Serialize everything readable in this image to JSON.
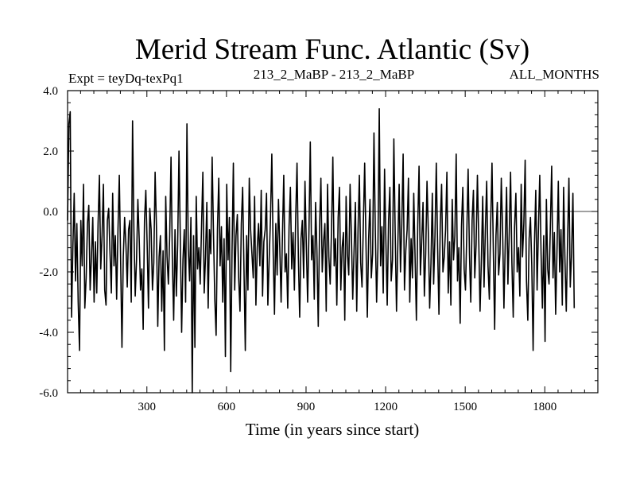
{
  "chart_data": {
    "type": "line",
    "title": "Merid Stream Func. Atlantic (Sv)",
    "subtitle_left": "Expt = teyDq-texPq1",
    "subtitle_center": "213_2_MaBP - 213_2_MaBP",
    "subtitle_right": "ALL_MONTHS",
    "xlabel": "Time (in years since start)",
    "ylabel": "",
    "xlim": [
      1,
      2000
    ],
    "ylim": [
      -6.0,
      4.0
    ],
    "x_ticks": [
      300,
      600,
      900,
      1200,
      1500,
      1800
    ],
    "x_tick_labels": [
      "300",
      "600",
      "900",
      "1200",
      "1500",
      "1800"
    ],
    "y_ticks": [
      -6.0,
      -4.0,
      -2.0,
      0.0,
      2.0,
      4.0
    ],
    "y_tick_labels": [
      "-6.0",
      "-4.0",
      "-2.0",
      "0.0",
      "2.0",
      "4.0"
    ],
    "zero_line": true,
    "grid": false,
    "series": [
      {
        "x_start": 1,
        "x_step": 5,
        "color": "#000000",
        "values": [
          -0.3,
          2.9,
          3.3,
          -3.5,
          -1.2,
          0.6,
          -2.3,
          -0.4,
          -3.0,
          -4.6,
          -0.3,
          -1.8,
          0.9,
          -3.2,
          -2.2,
          -0.4,
          0.2,
          -2.6,
          -1.5,
          -0.2,
          -3.0,
          -1.0,
          -2.7,
          -0.4,
          1.2,
          -1.9,
          -0.8,
          0.9,
          -2.6,
          -3.1,
          -0.3,
          0.1,
          -1.4,
          -2.7,
          0.6,
          -1.8,
          -0.8,
          -2.9,
          -0.6,
          1.2,
          -1.6,
          -4.5,
          -1.5,
          -0.2,
          -1.1,
          -2.5,
          -0.6,
          -0.3,
          -3.0,
          3.0,
          -0.6,
          -2.8,
          -1.6,
          0.4,
          -0.9,
          -2.6,
          -1.9,
          -3.9,
          -0.3,
          0.7,
          -1.1,
          -3.2,
          0.1,
          -0.6,
          -2.6,
          -1.7,
          1.3,
          -0.5,
          -3.8,
          -1.5,
          -0.8,
          -3.3,
          -1.3,
          -4.6,
          0.5,
          -1.5,
          -2.4,
          -0.8,
          1.8,
          -1.6,
          -3.6,
          -0.6,
          -2.8,
          -1.1,
          2.0,
          -0.9,
          -4.0,
          -1.6,
          -0.6,
          -3.0,
          2.9,
          -1.2,
          -2.3,
          -0.2,
          -6.0,
          -0.8,
          -4.5,
          0.5,
          -1.9,
          -1.2,
          -2.4,
          -0.5,
          1.3,
          -2.7,
          -1.5,
          0.3,
          -3.2,
          -0.6,
          -1.4,
          1.8,
          -0.7,
          -2.9,
          -4.1,
          -0.6,
          1.1,
          -1.8,
          -0.5,
          -3.0,
          -0.9,
          -4.8,
          0.9,
          -1.6,
          -0.2,
          -5.3,
          -1.3,
          1.6,
          -2.6,
          -0.8,
          -0.1,
          -2.2,
          -3.3,
          -0.4,
          0.8,
          -1.9,
          -4.6,
          -0.8,
          -2.6,
          1.1,
          -0.6,
          -1.4,
          -2.2,
          0.5,
          -3.1,
          -1.2,
          -0.4,
          -1.8,
          0.7,
          -2.8,
          -1.0,
          -0.6,
          0.6,
          -3.1,
          -1.6,
          -0.2,
          1.9,
          -1.3,
          -3.4,
          -0.4,
          -2.1,
          0.4,
          -1.2,
          -3.0,
          -0.8,
          1.2,
          -2.0,
          -1.4,
          -3.2,
          -0.5,
          0.8,
          -1.9,
          -0.7,
          -2.6,
          -0.2,
          1.6,
          -1.5,
          -3.5,
          -0.9,
          -0.3,
          -2.2,
          1.0,
          -1.1,
          -3.0,
          -0.6,
          2.3,
          -1.6,
          -0.8,
          -2.9,
          0.3,
          -1.3,
          -3.8,
          -0.5,
          1.1,
          -2.0,
          -1.0,
          -0.4,
          -3.3,
          0.9,
          -1.5,
          -2.4,
          -0.6,
          1.8,
          -1.8,
          -0.9,
          -3.1,
          -0.2,
          0.8,
          -2.6,
          -1.2,
          -0.7,
          -3.6,
          0.5,
          -1.4,
          -2.1,
          0.9,
          -0.8,
          -2.9,
          -1.3,
          0.3,
          -3.3,
          -0.6,
          1.2,
          -1.7,
          -2.5,
          -0.4,
          1.6,
          -1.1,
          -3.5,
          -0.9,
          0.4,
          -2.2,
          -1.4,
          2.6,
          -0.6,
          -3.0,
          -1.2,
          3.4,
          -1.8,
          -0.5,
          -2.7,
          1.4,
          -1.0,
          -3.1,
          -0.3,
          0.8,
          -2.3,
          -1.6,
          2.4,
          -0.7,
          -3.3,
          -1.1,
          0.9,
          -2.0,
          -0.4,
          1.9,
          -2.6,
          -1.3,
          -0.6,
          1.1,
          -3.0,
          -0.9,
          -2.2,
          0.6,
          -1.5,
          -3.6,
          -0.5,
          1.5,
          -2.1,
          -1.0,
          0.3,
          -2.8,
          -1.4,
          1.0,
          -0.7,
          -3.2,
          -1.7,
          0.6,
          -2.4,
          -0.8,
          1.6,
          -1.2,
          -3.4,
          -0.4,
          0.9,
          -2.0,
          -1.5,
          -0.6,
          1.3,
          -2.7,
          -1.0,
          -3.1,
          0.4,
          -1.6,
          -0.8,
          1.9,
          -2.3,
          -1.2,
          -3.7,
          -0.5,
          0.8,
          -1.9,
          -2.6,
          -0.7,
          1.4,
          -1.4,
          -3.0,
          -0.3,
          0.7,
          -2.2,
          -1.1,
          1.2,
          -0.9,
          -3.3,
          -1.6,
          0.5,
          -2.5,
          -0.6,
          1.0,
          -1.8,
          -2.9,
          -0.4,
          1.6,
          -1.3,
          -3.9,
          -0.8,
          0.3,
          -2.1,
          -1.4,
          1.1,
          -0.6,
          -3.2,
          -1.0,
          0.8,
          -2.4,
          -0.7,
          1.3,
          -1.7,
          -3.5,
          -0.5,
          0.6,
          -2.0,
          -1.2,
          -2.8,
          0.9,
          -1.5,
          -0.4,
          1.7,
          -2.3,
          -3.6,
          -0.9,
          -0.2,
          -1.8,
          -4.6,
          -1.1,
          0.7,
          -2.6,
          -0.6,
          1.2,
          -1.4,
          -3.2,
          -0.8,
          -4.3,
          0.4,
          -1.9,
          -2.4,
          -0.5,
          1.5,
          -2.2,
          -0.7,
          -3.4,
          -1.3,
          1.0,
          -2.0,
          -0.6,
          -3.1,
          0.8,
          -1.6,
          -3.3,
          -0.9,
          1.1,
          -2.5,
          -1.4,
          0.6,
          -3.2
        ]
      }
    ]
  }
}
